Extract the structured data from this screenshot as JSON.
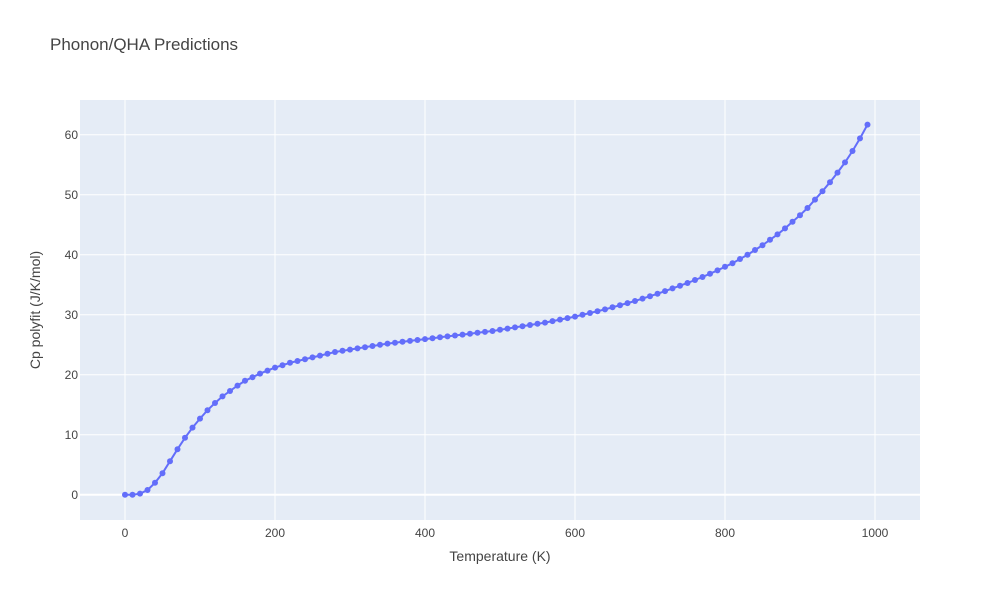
{
  "chart_data": {
    "type": "line",
    "title": "Phonon/QHA Predictions",
    "xlabel": "Temperature (K)",
    "ylabel": "Cp polyfit (J/K/mol)",
    "xlim": [
      -60,
      1060
    ],
    "ylim": [
      -4.2,
      65.8
    ],
    "x_ticks": [
      0,
      200,
      400,
      600,
      800,
      1000
    ],
    "y_ticks": [
      0,
      10,
      20,
      30,
      40,
      50,
      60
    ],
    "grid": true,
    "colors": {
      "series": "#636efa",
      "plot_bg": "#e5ecf6",
      "grid": "#ffffff",
      "text": "#444444",
      "title": "#444444"
    },
    "series": [
      {
        "mode": "lines+markers",
        "x": [
          0,
          10,
          20,
          30,
          40,
          50,
          60,
          70,
          80,
          90,
          100,
          110,
          120,
          130,
          140,
          150,
          160,
          170,
          180,
          190,
          200,
          210,
          220,
          230,
          240,
          250,
          260,
          270,
          280,
          290,
          300,
          310,
          320,
          330,
          340,
          350,
          360,
          370,
          380,
          390,
          400,
          410,
          420,
          430,
          440,
          450,
          460,
          470,
          480,
          490,
          500,
          510,
          520,
          530,
          540,
          550,
          560,
          570,
          580,
          590,
          600,
          610,
          620,
          630,
          640,
          650,
          660,
          670,
          680,
          690,
          700,
          710,
          720,
          730,
          740,
          750,
          760,
          770,
          780,
          790,
          800,
          810,
          820,
          830,
          840,
          850,
          860,
          870,
          880,
          890,
          900,
          910,
          920,
          930,
          940,
          950,
          960,
          970,
          980,
          990
        ],
        "y": [
          0,
          0,
          0.2,
          0.8,
          2,
          3.6,
          5.6,
          7.6,
          9.5,
          11.2,
          12.7,
          14.1,
          15.3,
          16.4,
          17.3,
          18.2,
          19,
          19.6,
          20.2,
          20.7,
          21.2,
          21.6,
          22,
          22.3,
          22.6,
          22.9,
          23.2,
          23.5,
          23.8,
          24,
          24.2,
          24.4,
          24.6,
          24.8,
          25,
          25.2,
          25.35,
          25.5,
          25.65,
          25.8,
          25.95,
          26.1,
          26.25,
          26.4,
          26.55,
          26.7,
          26.85,
          27,
          27.15,
          27.3,
          27.5,
          27.7,
          27.9,
          28.1,
          28.3,
          28.5,
          28.7,
          28.95,
          29.2,
          29.45,
          29.7,
          30,
          30.3,
          30.6,
          30.9,
          31.25,
          31.6,
          31.95,
          32.3,
          32.7,
          33.1,
          33.5,
          33.95,
          34.4,
          34.85,
          35.3,
          35.8,
          36.3,
          36.85,
          37.4,
          38,
          38.6,
          39.3,
          40,
          40.8,
          41.6,
          42.5,
          43.4,
          44.4,
          45.5,
          46.6,
          47.8,
          49.2,
          50.6,
          52.1,
          53.7,
          55.4,
          57.3,
          59.4,
          61.7
        ]
      }
    ]
  }
}
